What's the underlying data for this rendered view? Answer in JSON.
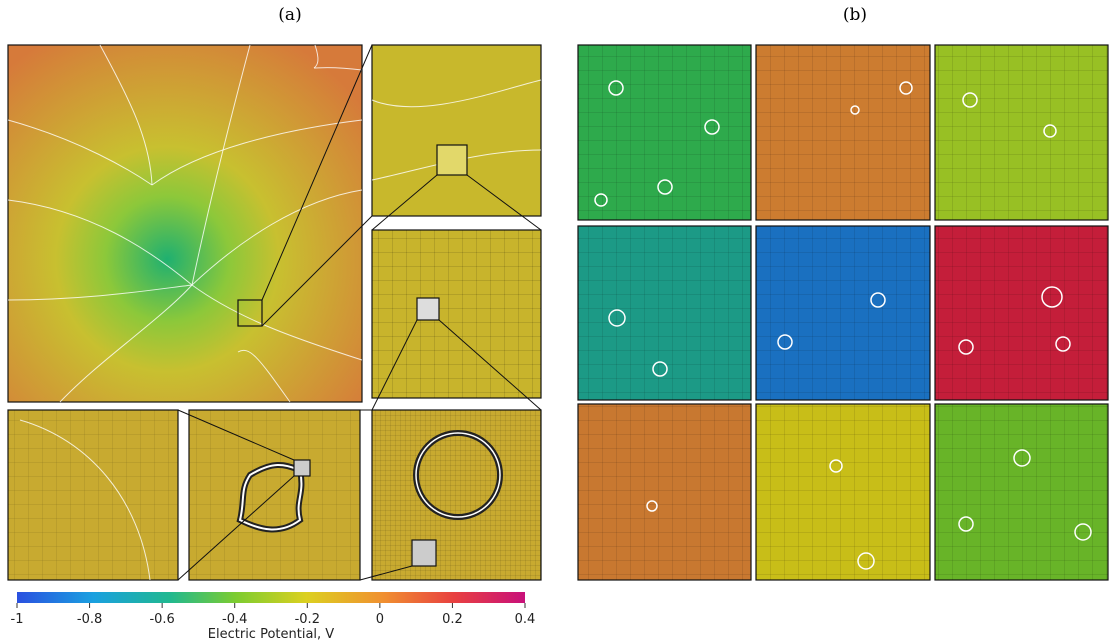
{
  "labels": {
    "a": "(a)",
    "b": "(b)"
  },
  "colorbar": {
    "label": "Electric Potential, V",
    "range": [
      -1,
      0.4
    ],
    "ticks": [
      -1,
      -0.8,
      -0.6,
      -0.4,
      -0.2,
      0,
      0.2,
      0.4
    ]
  }
}
